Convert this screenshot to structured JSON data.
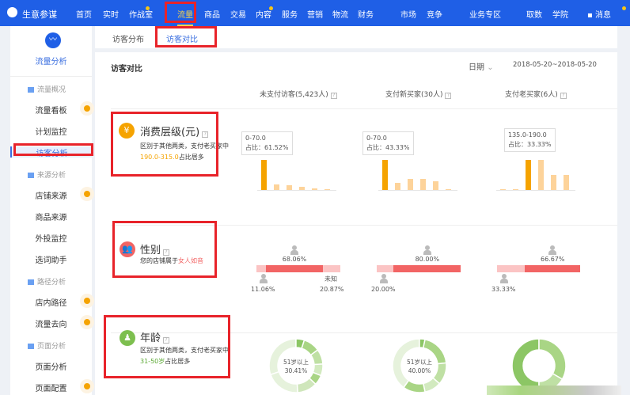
{
  "topbar": {
    "logo": "生意参谋",
    "nav": [
      "首页",
      "实时",
      "作战室",
      "流量",
      "商品",
      "交易",
      "内容",
      "服务",
      "营销",
      "物流",
      "财务",
      "市场",
      "竞争",
      "业务专区",
      "取数",
      "学院"
    ],
    "active": "流量",
    "messages": "消息"
  },
  "sidebar": {
    "title": "流量分析",
    "items": [
      {
        "label": "流量概况",
        "type": "group"
      },
      {
        "label": "流量看板",
        "type": "item",
        "dot": true
      },
      {
        "label": "计划监控",
        "type": "item"
      },
      {
        "label": "访客分析",
        "type": "item",
        "active": true
      },
      {
        "label": "来源分析",
        "type": "group"
      },
      {
        "label": "店铺来源",
        "type": "item",
        "dot": true
      },
      {
        "label": "商品来源",
        "type": "item"
      },
      {
        "label": "外投监控",
        "type": "item"
      },
      {
        "label": "选词助手",
        "type": "item"
      },
      {
        "label": "路径分析",
        "type": "group"
      },
      {
        "label": "店内路径",
        "type": "item",
        "dot": true
      },
      {
        "label": "流量去向",
        "type": "item",
        "dot": true
      },
      {
        "label": "页面分析",
        "type": "group"
      },
      {
        "label": "页面分析",
        "type": "item"
      },
      {
        "label": "页面配置",
        "type": "item",
        "dot": true
      }
    ]
  },
  "tabs": [
    "访客分布",
    "访客对比"
  ],
  "active_tab": "访客对比",
  "card": {
    "title": "访客对比",
    "date_label": "日期",
    "date_range": "2018-05-20~2018-05-20",
    "columns": [
      "未支付访客(5,423人)",
      "支付新买家(30人)",
      "支付老买家(6人)"
    ]
  },
  "sections": {
    "spend": {
      "title": "消费层级(元)",
      "desc_pre": "区别于其他两类，支付老买家中",
      "desc_hl": "190.0-315.0",
      "desc_post": "占比居多"
    },
    "gender": {
      "title": "性别",
      "desc_pre": "您的店铺属于",
      "desc_hl": "女人如音"
    },
    "age": {
      "title": "年龄",
      "desc_pre": "区别于其他两类，支付老买家中",
      "desc_hl": "31-50岁",
      "desc_post": "占比居多"
    }
  },
  "chart_data": [
    {
      "type": "bar",
      "title": "消费层级 - 未支付访客",
      "values": [
        61.52,
        12,
        9,
        7,
        3,
        2
      ],
      "tooltip": {
        "range": "0-70.0",
        "share": "占比：61.52%"
      }
    },
    {
      "type": "bar",
      "title": "消费层级 - 支付新买家",
      "values": [
        43.33,
        10,
        16,
        16,
        13,
        1
      ],
      "tooltip": {
        "range": "0-70.0",
        "share": "占比：43.33%"
      }
    },
    {
      "type": "bar",
      "title": "消费层级 - 支付老买家",
      "values": [
        1,
        1,
        33.33,
        33.33,
        17,
        17
      ],
      "tooltip": {
        "range": "135.0-190.0",
        "share": "占比：33.33%"
      }
    },
    {
      "type": "bar",
      "gender": {
        "male": "11.06%",
        "female": "68.06%",
        "unknown_label": "未知",
        "unknown": "20.87%"
      },
      "values": [
        11.06,
        68.06,
        20.87
      ]
    },
    {
      "type": "bar",
      "gender": {
        "male": "20.00%",
        "female": "80.00%"
      },
      "values": [
        20,
        80,
        0
      ]
    },
    {
      "type": "bar",
      "gender": {
        "male": "33.33%",
        "female": "66.67%"
      },
      "values": [
        33.33,
        66.67,
        0
      ]
    },
    {
      "type": "pie",
      "label": "51岁以上",
      "value": "30.41%",
      "values": [
        30.41,
        5,
        10,
        9,
        7,
        6,
        12,
        20.59
      ]
    },
    {
      "type": "pie",
      "label": "51岁以上",
      "value": "40.00%",
      "values": [
        40,
        3.33,
        20,
        13.33,
        10,
        13.34
      ]
    },
    {
      "type": "pie",
      "values": [
        50,
        33.33,
        16.67
      ]
    }
  ],
  "colors": {
    "brand": "#1f5fe6",
    "orange": "#f5a300",
    "orange_light": "#fdd39a",
    "red": "#f26464",
    "red_light": "#fbc4c4",
    "green": "#8cc665",
    "green_light": "#e6f2dc"
  }
}
